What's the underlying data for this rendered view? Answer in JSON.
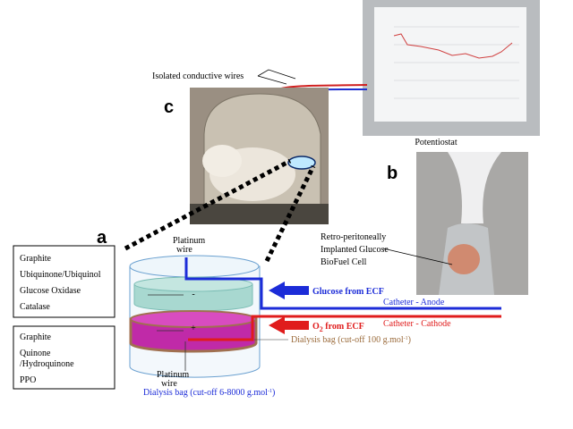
{
  "panel_labels": {
    "a": "a",
    "b": "b",
    "c": "c"
  },
  "wires_label": "Isolated conductive wires",
  "potentiostat": "Potentiostat",
  "implant_label": [
    "Retro-peritoneally",
    "Implanted Glucose",
    "BioFuel Cell"
  ],
  "anode": {
    "layers": [
      "Graphite",
      "Ubiquinone/Ubiquinol",
      "Glucose Oxidase",
      "Catalase"
    ],
    "sign": "-",
    "wire": [
      "Platinum",
      "wire"
    ],
    "inflow": "Glucose from ECF",
    "catheter": "Catheter - Anode"
  },
  "cathode": {
    "layers": [
      "Graphite",
      "Quinone",
      "/Hydroquinone",
      "PPO"
    ],
    "sign": "+",
    "wire": [
      "Platinum",
      "wire"
    ],
    "inflow": {
      "main": "O",
      "sub": "2",
      "rest": " from ECF"
    },
    "catheter": "Catheter - Cathode",
    "dialysis": {
      "text": "Dialysis bag (cut-off 100 g.mol",
      "sup": "-1",
      "end": ")"
    }
  },
  "outer_dialysis": {
    "text": "Dialysis bag (cut-off 6-8000 g.mol",
    "sup": "-1",
    "end": ")"
  }
}
